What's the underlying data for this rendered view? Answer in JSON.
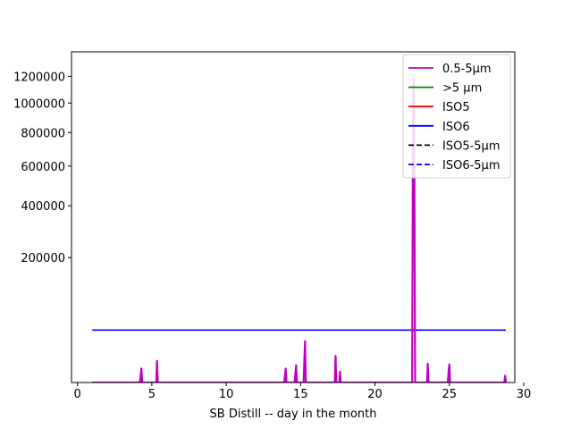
{
  "chart_data": {
    "type": "line",
    "xlabel": "SB Distill -- day in the month",
    "ylabel": "",
    "xlim": [
      -0.4,
      29.4
    ],
    "ylim": [
      0,
      1400000
    ],
    "y_scale": "sqrt",
    "grid": false,
    "legend_position": "upper right",
    "x_ticks": [
      0,
      5,
      10,
      15,
      20,
      25,
      30
    ],
    "y_ticks": [
      200000,
      400000,
      600000,
      800000,
      1000000,
      1200000
    ],
    "y_tick_labels": [
      "200000",
      "400000",
      "600000",
      "800000",
      "1000000",
      "1200000"
    ],
    "series": [
      {
        "name": "0.5-5µm",
        "color": "#bf00bf",
        "style": "solid",
        "points": [
          [
            1.0,
            0
          ],
          [
            4.2,
            0
          ],
          [
            4.3,
            2500
          ],
          [
            4.35,
            0
          ],
          [
            5.3,
            0
          ],
          [
            5.35,
            6000
          ],
          [
            5.4,
            0
          ],
          [
            13.9,
            0
          ],
          [
            14.0,
            2500
          ],
          [
            14.05,
            0
          ],
          [
            14.6,
            0
          ],
          [
            14.7,
            3800
          ],
          [
            14.75,
            0
          ],
          [
            15.2,
            0
          ],
          [
            15.3,
            22000
          ],
          [
            15.35,
            0
          ],
          [
            17.3,
            0
          ],
          [
            17.35,
            9000
          ],
          [
            17.4,
            0
          ],
          [
            17.6,
            0
          ],
          [
            17.65,
            1500
          ],
          [
            17.7,
            0
          ],
          [
            22.5,
            0
          ],
          [
            22.55,
            680000
          ],
          [
            22.6,
            1180000
          ],
          [
            22.65,
            560000
          ],
          [
            22.7,
            0
          ],
          [
            23.5,
            0
          ],
          [
            23.55,
            4500
          ],
          [
            23.6,
            0
          ],
          [
            24.9,
            0
          ],
          [
            24.95,
            1500
          ],
          [
            25.0,
            4200
          ],
          [
            25.05,
            0
          ],
          [
            28.7,
            0
          ],
          [
            28.75,
            600
          ],
          [
            28.8,
            0
          ]
        ]
      },
      {
        "name": ">5 µm",
        "color": "#008000",
        "style": "solid",
        "points": [
          [
            1.0,
            0
          ],
          [
            28.8,
            0
          ]
        ]
      },
      {
        "name": "ISO5",
        "color": "#ff0000",
        "style": "solid",
        "points": [
          [
            1.0,
            0
          ],
          [
            28.8,
            0
          ]
        ]
      },
      {
        "name": "ISO6",
        "color": "#0000ff",
        "style": "solid",
        "points": [
          [
            1.0,
            35200
          ],
          [
            28.8,
            35200
          ]
        ]
      },
      {
        "name": "ISO5-5µm",
        "color": "#000000",
        "style": "dashed",
        "points": []
      },
      {
        "name": "ISO6-5µm",
        "color": "#0000ff",
        "style": "dashed",
        "points": []
      }
    ]
  }
}
